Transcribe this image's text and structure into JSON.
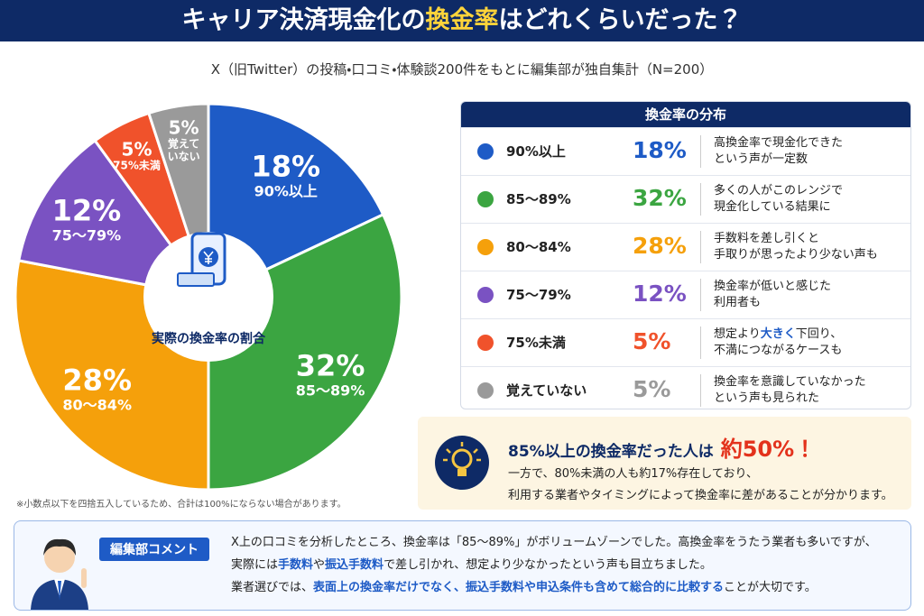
{
  "header": {
    "title": [
      "キャリア決済現金化の",
      "換金率",
      "はどれくらいだった？"
    ],
    "subtitle": "X（旧Twitter）の投稿・口コミ・体験談200件をもとに編集部が独自集計（N=200）"
  },
  "chart_data": {
    "type": "pie",
    "center_label": "実際の換金率の割合",
    "categories": [
      "90%以上",
      "85～89%",
      "80～84%",
      "75～79%",
      "75%未満",
      "覚えていない"
    ],
    "values": [
      18,
      32,
      28,
      12,
      5,
      5
    ],
    "value_labels": [
      "18%",
      "32%",
      "28%",
      "12%",
      "5%",
      "5%"
    ],
    "colors": [
      "#1e5bc6",
      "#3ba541",
      "#f5a00b",
      "#7a52c2",
      "#f0522b",
      "#9a9a9a"
    ],
    "note": "※小数点以下を四捨五入しているため、合計は100%にならない場合があります。"
  },
  "table": {
    "title": "換金率の分布",
    "descriptions": [
      [
        [
          "高換金率で現金化できた"
        ],
        [
          "という声が一定数"
        ]
      ],
      [
        [
          "多くの人がこのレンジで"
        ],
        [
          "現金化している結果に"
        ]
      ],
      [
        [
          "手数料を差し引くと"
        ],
        [
          "手取りが思ったより少ない声も"
        ]
      ],
      [
        [
          "換金率が低いと感じた"
        ],
        [
          "利用者も"
        ]
      ],
      [
        [
          "想定より",
          "大きく",
          "下回り、"
        ],
        [
          "不満につながるケースも"
        ]
      ],
      [
        [
          "換金率を意識していなかった"
        ],
        [
          "という声も見られた"
        ]
      ]
    ]
  },
  "highlight": {
    "headline": [
      "85%以上の換金率だった人は",
      "約50%！"
    ],
    "lines": [
      "一方で、80%未満の人も約17%存在しており、",
      "利用する業者やタイミングによって換金率に差があることが分かります。"
    ]
  },
  "comment": {
    "label": "編集部コメント",
    "lines": [
      [
        "X上の口コミを分析したところ、換金率は「85～89%」がボリュームゾーンでした。高換金率をうたう業者も多いですが、"
      ],
      [
        "実際には",
        "手数料",
        "や",
        "振込手数料",
        "で差し引かれ、想定より少なかったという声も目立ちました。"
      ],
      [
        "業者選びでは、",
        "表面上の換金率だけでなく、振込手数料や申込条件も含めて総合的に比較する",
        "ことが大切です。"
      ]
    ]
  }
}
